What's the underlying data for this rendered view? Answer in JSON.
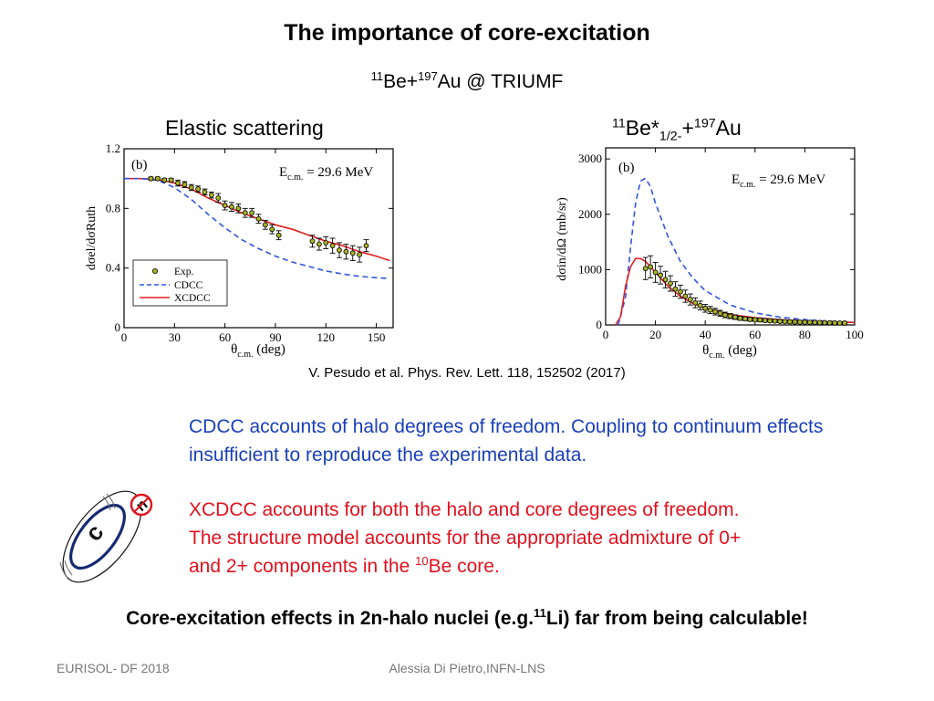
{
  "title": "The importance of core-excitation",
  "subtitle": {
    "mass_be": "11",
    "be": "Be+",
    "mass_au": "197",
    "au": "Au @ TRIUMF"
  },
  "left_label": "Elastic scattering",
  "right_label": {
    "mass_be": "11",
    "be": "Be*",
    "sub": "1/2-",
    "plus": "+",
    "mass_au": "197",
    "au": "Au"
  },
  "citation": "V. Pesudo et al. Phys. Rev. Lett. 118, 152502 (2017)",
  "paragraph_cdcc": "CDCC accounts of halo degrees of freedom. Coupling to continuum effects insufficient to reproduce the experimental data.",
  "paragraph_xcdcc": {
    "line1": "XCDCC accounts for both the halo and core degrees of freedom.",
    "line2": "The structure model accounts for the appropriate admixture of 0+",
    "line3_pre": "and 2+ components in the ",
    "line3_mass": "10",
    "line3_post": "Be core."
  },
  "conclusion": {
    "pre": "Core-excitation effects in 2n-halo nuclei (e.g.",
    "mass": "11",
    "post": "Li)  far from being calculable!"
  },
  "footer_left": "EURISOL- DF 2018",
  "footer_center": "Alessia Di Pietro,INFN-LNS",
  "icon": {
    "core_letter": "c",
    "halo_letter": "n"
  },
  "colors": {
    "blue_text": "#1a3fb8",
    "red_text": "#e0121e",
    "cdcc_curve": "#3355dd",
    "xcdcc_curve": "#e02020"
  },
  "chart_data": [
    {
      "type": "line",
      "panel_label": "(b)",
      "annotation": {
        "pre": "E",
        "sub": "c.m.",
        "post": " = 29.6 MeV"
      },
      "xlabel": {
        "main": "θ",
        "sub": "c.m.",
        "post": " (deg)"
      },
      "ylabel": "dσel/dσRuth",
      "xlim": [
        0,
        160
      ],
      "ylim": [
        0,
        1.2
      ],
      "xticks": [
        0,
        30,
        60,
        90,
        120,
        150
      ],
      "yticks": [
        0,
        0.4,
        0.8,
        1.2
      ],
      "ytick_labels": [
        "0",
        "0.4",
        "0.8",
        "1.2"
      ],
      "legend": [
        "Exp.",
        "CDCC",
        "XCDCC"
      ],
      "series": [
        {
          "name": "XCDCC",
          "style": "solid",
          "x": [
            0,
            10,
            20,
            30,
            40,
            50,
            60,
            70,
            80,
            90,
            100,
            110,
            120,
            130,
            140,
            150,
            158
          ],
          "y": [
            1.0,
            1.0,
            0.995,
            0.97,
            0.93,
            0.87,
            0.82,
            0.77,
            0.73,
            0.69,
            0.66,
            0.62,
            0.58,
            0.55,
            0.51,
            0.48,
            0.45
          ]
        },
        {
          "name": "CDCC",
          "style": "dashed",
          "x": [
            0,
            10,
            20,
            30,
            40,
            50,
            60,
            70,
            80,
            90,
            100,
            110,
            120,
            130,
            140,
            150,
            158
          ],
          "y": [
            1.0,
            1.0,
            0.99,
            0.94,
            0.86,
            0.76,
            0.67,
            0.59,
            0.53,
            0.48,
            0.44,
            0.41,
            0.38,
            0.36,
            0.345,
            0.335,
            0.33
          ]
        },
        {
          "name": "Exp.",
          "style": "markers",
          "x": [
            16,
            20,
            24,
            28,
            32,
            36,
            40,
            44,
            48,
            52,
            56,
            60,
            64,
            68,
            72,
            76,
            80,
            84,
            88,
            92,
            112,
            116,
            120,
            124,
            128,
            132,
            136,
            140,
            144
          ],
          "y": [
            1.0,
            1.0,
            0.99,
            0.99,
            0.97,
            0.96,
            0.94,
            0.93,
            0.91,
            0.89,
            0.87,
            0.82,
            0.81,
            0.8,
            0.77,
            0.77,
            0.73,
            0.69,
            0.66,
            0.62,
            0.58,
            0.56,
            0.57,
            0.55,
            0.52,
            0.51,
            0.5,
            0.49,
            0.55
          ],
          "err": [
            0.01,
            0.01,
            0.01,
            0.01,
            0.02,
            0.02,
            0.02,
            0.02,
            0.02,
            0.02,
            0.03,
            0.03,
            0.03,
            0.03,
            0.03,
            0.03,
            0.03,
            0.03,
            0.03,
            0.03,
            0.04,
            0.04,
            0.04,
            0.05,
            0.05,
            0.05,
            0.05,
            0.05,
            0.04
          ]
        }
      ]
    },
    {
      "type": "line",
      "panel_label": "(b)",
      "annotation": {
        "pre": "E",
        "sub": "c.m.",
        "post": " = 29.6 MeV"
      },
      "xlabel": {
        "main": "θ",
        "sub": "c.m.",
        "post": " (deg)"
      },
      "ylabel": "dσin/dΩ (mb/sr)",
      "xlim": [
        0,
        100
      ],
      "ylim": [
        0,
        3200
      ],
      "xticks": [
        0,
        20,
        40,
        60,
        80,
        100
      ],
      "yticks": [
        0,
        1000,
        2000,
        3000
      ],
      "ytick_labels": [
        "0",
        "1000",
        "2000",
        "3000"
      ],
      "series": [
        {
          "name": "CDCC",
          "style": "dashed",
          "x": [
            5,
            8,
            10,
            12,
            14,
            16,
            18,
            20,
            25,
            30,
            35,
            40,
            50,
            60,
            70,
            80,
            90,
            100
          ],
          "y": [
            0,
            500,
            1400,
            2200,
            2600,
            2650,
            2500,
            2200,
            1600,
            1150,
            850,
            620,
            360,
            220,
            140,
            95,
            65,
            45
          ]
        },
        {
          "name": "XCDCC",
          "style": "solid",
          "x": [
            4,
            6,
            8,
            10,
            12,
            14,
            16,
            18,
            20,
            25,
            30,
            35,
            40,
            50,
            60,
            70,
            80,
            90,
            100
          ],
          "y": [
            0,
            150,
            700,
            1050,
            1200,
            1200,
            1150,
            1050,
            950,
            700,
            520,
            390,
            300,
            190,
            130,
            95,
            70,
            55,
            45
          ]
        },
        {
          "name": "Exp.",
          "style": "markers",
          "x": [
            16,
            18,
            20,
            22,
            24,
            26,
            28,
            30,
            32,
            34,
            36,
            38,
            40,
            42,
            44,
            46,
            48,
            50,
            52,
            54,
            56,
            58,
            60,
            62,
            64,
            66,
            68,
            70,
            72,
            74,
            76,
            78,
            80,
            82,
            84,
            86,
            88,
            90,
            92,
            94,
            96
          ],
          "y": [
            1020,
            1050,
            950,
            900,
            820,
            750,
            650,
            600,
            520,
            460,
            400,
            350,
            300,
            270,
            240,
            210,
            180,
            160,
            140,
            120,
            110,
            100,
            95,
            90,
            80,
            75,
            70,
            65,
            60,
            58,
            55,
            52,
            50,
            48,
            45,
            43,
            40,
            38,
            36,
            35,
            34
          ],
          "err": [
            200,
            200,
            180,
            160,
            150,
            140,
            130,
            120,
            110,
            100,
            90,
            80,
            70,
            65,
            60,
            55,
            50,
            45,
            40,
            35,
            30,
            30,
            30,
            30,
            25,
            25,
            25,
            25,
            25,
            25,
            25,
            20,
            20,
            20,
            20,
            20,
            20,
            20,
            20,
            20,
            20
          ]
        }
      ]
    }
  ]
}
